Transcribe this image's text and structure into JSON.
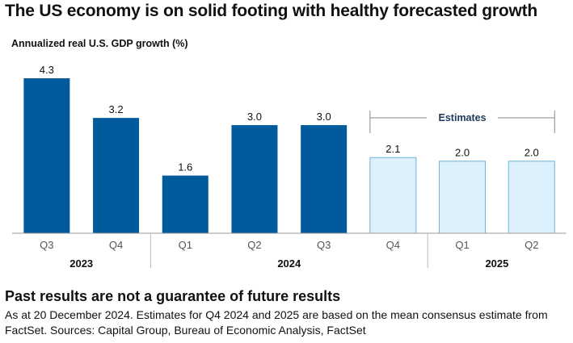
{
  "title": "The US economy is on solid footing with healthy forecasted growth",
  "footer": {
    "heading": "Past results are not a guarantee of future results",
    "note": "As at 20 December 2024. Estimates for Q4 2024 and 2025 are based on the mean consensus estimate from FactSet. Sources: Capital Group, Bureau of Economic Analysis, FactSet"
  },
  "colors": {
    "actual_fill": "#005A9C",
    "estimate_fill": "#DDF1FC",
    "estimate_stroke": "#6FB3D8",
    "axis": "#9A9A9A"
  },
  "chart_data": {
    "type": "bar",
    "title": "",
    "ylabel": "Annualized real U.S. GDP growth (%)",
    "xlabel": "",
    "ylim": [
      0,
      4.3
    ],
    "grid": false,
    "categories": [
      "Q3",
      "Q4",
      "Q1",
      "Q2",
      "Q3",
      "Q4",
      "Q1",
      "Q2"
    ],
    "groups": [
      {
        "label": "2023",
        "count": 2
      },
      {
        "label": "2024",
        "count": 4
      },
      {
        "label": "2025",
        "count": 2
      }
    ],
    "values": [
      4.3,
      3.2,
      1.6,
      3.0,
      3.0,
      2.1,
      2.0,
      2.0
    ],
    "data_labels": [
      "4.3",
      "3.2",
      "1.6",
      "3.0",
      "3.0",
      "2.1",
      "2.0",
      "2.0"
    ],
    "is_estimate": [
      false,
      false,
      false,
      false,
      false,
      true,
      true,
      true
    ],
    "annotation": "Estimates"
  }
}
